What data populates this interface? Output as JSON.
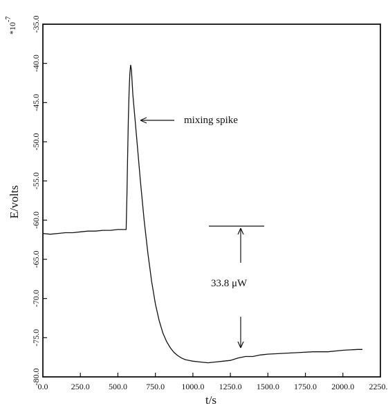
{
  "chart_data": {
    "type": "line",
    "xlabel": "t/s",
    "ylabel": "E/volts",
    "scale_label": "*10",
    "scale_exponent": "-7",
    "xlim": [
      0,
      2250
    ],
    "ylim": [
      -80,
      -35
    ],
    "x_ticks": [
      "0.0",
      "250.0",
      "500.0",
      "750.0",
      "1000.0",
      "1250.0",
      "1500.0",
      "1750.0",
      "2000.0",
      "2250.0"
    ],
    "y_ticks": [
      "-35.0",
      "-40.0",
      "-45.0",
      "-50.0",
      "-55.0",
      "-60.0",
      "-65.0",
      "-70.0",
      "-75.0",
      "-80.0"
    ],
    "series": [
      {
        "x": [
          0,
          50,
          100,
          150,
          200,
          250,
          300,
          350,
          400,
          450,
          500,
          540,
          555,
          560,
          565,
          570,
          575,
          580,
          585,
          590,
          600,
          625,
          650,
          675,
          700,
          725,
          750,
          775,
          800,
          825,
          850,
          875,
          900,
          925,
          950,
          975,
          1000,
          1050,
          1100,
          1150,
          1200,
          1250,
          1300,
          1350,
          1400,
          1450,
          1500,
          1600,
          1700,
          1800,
          1900,
          2000,
          2100,
          2130
        ],
        "y": [
          -61.7,
          -61.8,
          -61.7,
          -61.6,
          -61.6,
          -61.5,
          -61.4,
          -61.4,
          -61.3,
          -61.3,
          -61.2,
          -61.2,
          -61.2,
          -57.0,
          -52.0,
          -47.0,
          -43.5,
          -41.2,
          -40.2,
          -40.8,
          -44.0,
          -49.5,
          -55.0,
          -60.0,
          -64.2,
          -67.8,
          -70.7,
          -72.8,
          -74.4,
          -75.5,
          -76.3,
          -76.9,
          -77.3,
          -77.6,
          -77.8,
          -77.9,
          -78.0,
          -78.1,
          -78.2,
          -78.1,
          -78.0,
          -77.9,
          -77.6,
          -77.4,
          -77.4,
          -77.2,
          -77.1,
          -77.0,
          -76.9,
          -76.8,
          -76.8,
          -76.6,
          -76.5,
          -76.5
        ]
      }
    ],
    "annotations": {
      "spike_label": "mixing spike",
      "power_label": "33.8 μW"
    }
  }
}
